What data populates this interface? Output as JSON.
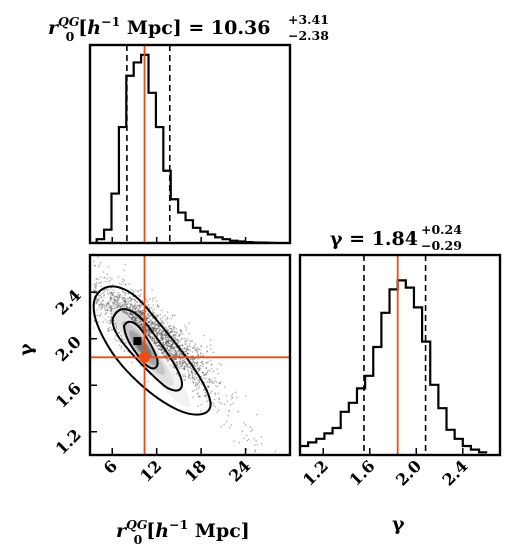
{
  "chart_data": [
    {
      "panel": "r0-marginal",
      "type": "histogram",
      "title": {
        "main": "r0QG[h−1 Mpc] = 10.36",
        "plus": "+3.41",
        "minus": "−2.38"
      },
      "median": 10.36,
      "quantiles": [
        7.98,
        13.77
      ],
      "truth": 10.36,
      "xlim": [
        3,
        30
      ],
      "bin_edges": [
        3.9,
        4.9,
        5.9,
        6.9,
        7.9,
        8.9,
        9.9,
        10.9,
        11.9,
        12.9,
        13.9,
        14.9,
        15.9,
        16.9,
        17.9,
        18.9,
        19.9,
        20.9,
        21.9,
        22.9,
        23.9,
        24.9,
        25.9,
        26.9,
        27.9
      ],
      "counts": [
        0.02,
        0.07,
        0.26,
        0.61,
        0.88,
        0.95,
        0.99,
        0.79,
        0.61,
        0.38,
        0.23,
        0.16,
        0.12,
        0.08,
        0.06,
        0.045,
        0.03,
        0.02,
        0.012,
        0.008,
        0.005,
        0.003,
        0.002,
        0.001
      ]
    },
    {
      "panel": "joint",
      "type": "scatter",
      "x_label": "r0QG[h−1 Mpc]",
      "y_label": "γ",
      "xlim": [
        3,
        30
      ],
      "ylim": [
        1.0,
        2.72
      ],
      "x_ticks": [
        6,
        12,
        18,
        24
      ],
      "x_tick_labels": [
        "6",
        "12",
        "18",
        "24"
      ],
      "y_ticks": [
        1.2,
        1.6,
        2.0,
        2.4
      ],
      "y_tick_labels": [
        "1.2",
        "1.6",
        "2.0",
        "2.4"
      ],
      "truth": {
        "x": 10.36,
        "y": 1.84
      },
      "best_point": {
        "x": 9.4,
        "y": 1.98
      },
      "contour_levels": 3
    },
    {
      "panel": "gamma-marginal",
      "type": "histogram",
      "title": {
        "main": "γ = 1.84",
        "plus": "+0.24",
        "minus": "−0.29"
      },
      "median": 1.84,
      "quantiles": [
        1.55,
        2.08
      ],
      "truth": 1.84,
      "xlim": [
        1.0,
        2.72
      ],
      "x_ticks": [
        1.2,
        1.6,
        2.0,
        2.4
      ],
      "x_tick_labels": [
        "1.2",
        "1.6",
        "2.0",
        "2.4"
      ],
      "x_label": "γ",
      "bin_edges": [
        1.0,
        1.07,
        1.14,
        1.21,
        1.28,
        1.35,
        1.42,
        1.49,
        1.56,
        1.63,
        1.7,
        1.77,
        1.84,
        1.91,
        1.98,
        2.05,
        2.12,
        2.19,
        2.26,
        2.33,
        2.4,
        2.47,
        2.54,
        2.61
      ],
      "counts": [
        0.05,
        0.07,
        0.09,
        0.12,
        0.15,
        0.24,
        0.29,
        0.37,
        0.44,
        0.6,
        0.79,
        0.92,
        0.97,
        0.93,
        0.82,
        0.63,
        0.39,
        0.26,
        0.14,
        0.09,
        0.05,
        0.03,
        0.015
      ]
    }
  ]
}
